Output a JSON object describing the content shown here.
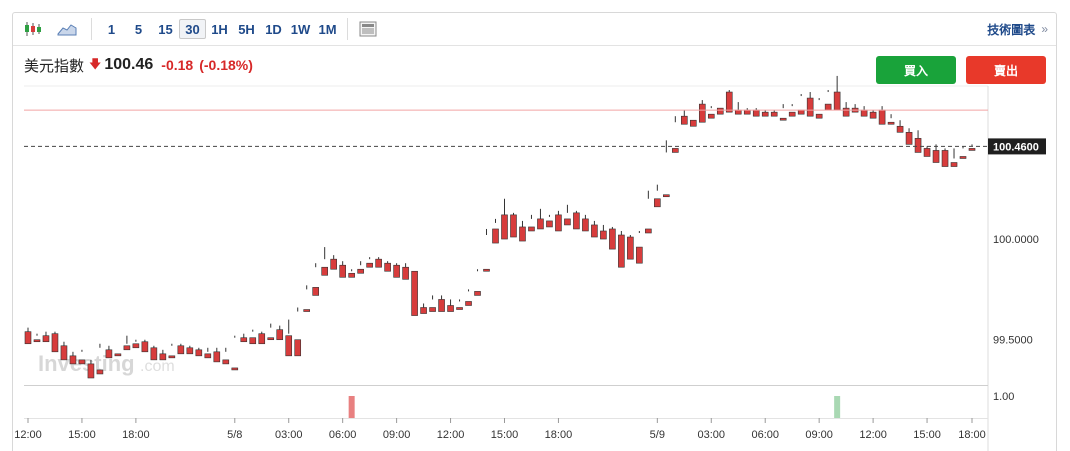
{
  "toolbar": {
    "timeframes": [
      "1",
      "5",
      "15",
      "30",
      "1H",
      "5H",
      "1D",
      "1W",
      "1M"
    ],
    "active_timeframe": "30",
    "tech_link": "技術圖表",
    "tech_arrow": "»"
  },
  "instrument": {
    "name": "美元指數",
    "price": "100.46",
    "change": "-0.18",
    "change_pct": "(-0.18%)",
    "direction": "down"
  },
  "actions": {
    "buy": "買入",
    "sell": "賣出"
  },
  "watermark": {
    "brand": "Investing",
    "suffix": ".com"
  },
  "colors": {
    "up": "#2ea043",
    "down": "#d73c3c",
    "buy": "#19a33a",
    "sell": "#e8392a",
    "accent": "#1f4a8a"
  },
  "chart_data": {
    "type": "candlestick",
    "current_price_label": "100.4600",
    "y_ticks": [
      "100.0000",
      "99.5000"
    ],
    "y_range": [
      99.3,
      100.75
    ],
    "current_price": 100.46,
    "reference_line": 100.64,
    "volume_tick": "1.00",
    "x_ticks": [
      "12:00",
      "15:00",
      "18:00",
      "5/8",
      "03:00",
      "06:00",
      "09:00",
      "12:00",
      "15:00",
      "18:00",
      "5/9",
      "03:00",
      "06:00",
      "09:00",
      "12:00",
      "15:00",
      "18:00"
    ],
    "candles": [
      [
        99.54,
        99.56,
        99.49,
        99.48
      ],
      [
        99.5,
        99.52,
        99.53,
        99.49
      ],
      [
        99.52,
        99.54,
        99.51,
        99.49
      ],
      [
        99.53,
        99.54,
        99.46,
        99.44
      ],
      [
        99.47,
        99.49,
        99.41,
        99.4
      ],
      [
        99.42,
        99.44,
        99.4,
        99.38
      ],
      [
        99.4,
        99.45,
        99.44,
        99.38
      ],
      [
        99.38,
        99.4,
        99.33,
        99.31
      ],
      [
        99.35,
        99.48,
        99.46,
        99.33
      ],
      [
        99.45,
        99.47,
        99.43,
        99.41
      ],
      [
        99.43,
        99.47,
        99.47,
        99.42
      ],
      [
        99.47,
        99.52,
        99.48,
        99.45
      ],
      [
        99.48,
        99.5,
        99.49,
        99.46
      ],
      [
        99.49,
        99.5,
        99.46,
        99.44
      ],
      [
        99.46,
        99.47,
        99.42,
        99.4
      ],
      [
        99.43,
        99.45,
        99.42,
        99.4
      ],
      [
        99.42,
        99.48,
        99.47,
        99.41
      ],
      [
        99.47,
        99.48,
        99.45,
        99.43
      ],
      [
        99.46,
        99.47,
        99.44,
        99.43
      ],
      [
        99.45,
        99.46,
        99.43,
        99.42
      ],
      [
        99.43,
        99.46,
        99.44,
        99.41
      ],
      [
        99.44,
        99.46,
        99.4,
        99.39
      ],
      [
        99.4,
        99.46,
        99.44,
        99.38
      ],
      [
        99.36,
        99.52,
        99.51,
        99.35
      ],
      [
        99.51,
        99.53,
        99.51,
        99.49
      ],
      [
        99.51,
        99.55,
        99.54,
        99.48
      ],
      [
        99.53,
        99.54,
        99.5,
        99.48
      ],
      [
        99.51,
        99.58,
        99.56,
        99.5
      ],
      [
        99.55,
        99.57,
        99.54,
        99.5
      ],
      [
        99.52,
        99.6,
        99.53,
        99.42
      ],
      [
        99.5,
        99.66,
        99.64,
        99.42
      ],
      [
        99.65,
        99.77,
        99.75,
        99.64
      ],
      [
        99.76,
        99.88,
        99.86,
        99.72
      ],
      [
        99.86,
        99.96,
        99.9,
        99.82
      ],
      [
        99.9,
        99.92,
        99.87,
        99.85
      ],
      [
        99.87,
        99.89,
        99.82,
        99.81
      ],
      [
        99.83,
        99.85,
        99.84,
        99.81
      ],
      [
        99.85,
        99.89,
        99.87,
        99.83
      ],
      [
        99.88,
        99.91,
        99.9,
        99.86
      ],
      [
        99.9,
        99.91,
        99.88,
        99.86
      ],
      [
        99.88,
        99.89,
        99.87,
        99.84
      ],
      [
        99.87,
        99.88,
        99.83,
        99.81
      ],
      [
        99.86,
        99.88,
        99.82,
        99.8
      ],
      [
        99.84,
        99.84,
        99.64,
        99.62
      ],
      [
        99.66,
        99.68,
        99.65,
        99.63
      ],
      [
        99.66,
        99.72,
        99.7,
        99.64
      ],
      [
        99.7,
        99.72,
        99.67,
        99.64
      ],
      [
        99.67,
        99.7,
        99.66,
        99.64
      ],
      [
        99.66,
        99.7,
        99.69,
        99.65
      ],
      [
        99.69,
        99.75,
        99.74,
        99.67
      ],
      [
        99.74,
        99.85,
        99.84,
        99.72
      ],
      [
        99.85,
        100.05,
        100.02,
        99.84
      ],
      [
        100.05,
        100.1,
        100.08,
        99.98
      ],
      [
        100.12,
        100.2,
        100.12,
        100.0
      ],
      [
        100.12,
        100.13,
        100.04,
        100.01
      ],
      [
        100.06,
        100.09,
        100.02,
        99.99
      ],
      [
        100.06,
        100.12,
        100.1,
        100.04
      ],
      [
        100.1,
        100.15,
        100.1,
        100.05
      ],
      [
        100.09,
        100.12,
        100.11,
        100.06
      ],
      [
        100.12,
        100.14,
        100.1,
        100.04
      ],
      [
        100.1,
        100.17,
        100.13,
        100.07
      ],
      [
        100.13,
        100.14,
        100.07,
        100.05
      ],
      [
        100.1,
        100.12,
        100.07,
        100.04
      ],
      [
        100.07,
        100.09,
        100.03,
        100.01
      ],
      [
        100.04,
        100.07,
        100.04,
        100.0
      ],
      [
        100.05,
        100.06,
        99.99,
        99.95
      ],
      [
        100.02,
        100.04,
        99.99,
        99.86
      ],
      [
        100.01,
        100.02,
        99.97,
        99.9
      ],
      [
        99.96,
        100.04,
        100.03,
        99.88
      ],
      [
        100.05,
        100.24,
        100.2,
        100.03
      ],
      [
        100.2,
        100.27,
        100.24,
        100.16
      ],
      [
        100.22,
        100.49,
        100.43,
        100.21
      ],
      [
        100.45,
        100.61,
        100.58,
        100.43
      ],
      [
        100.61,
        100.64,
        100.6,
        100.57
      ],
      [
        100.59,
        100.67,
        100.67,
        100.56
      ],
      [
        100.67,
        100.69,
        100.62,
        100.58
      ],
      [
        100.62,
        100.66,
        100.65,
        100.6
      ],
      [
        100.65,
        100.71,
        100.71,
        100.62
      ],
      [
        100.73,
        100.74,
        100.65,
        100.63
      ],
      [
        100.64,
        100.68,
        100.64,
        100.62
      ],
      [
        100.64,
        100.65,
        100.64,
        100.62
      ],
      [
        100.64,
        100.65,
        100.64,
        100.61
      ],
      [
        100.63,
        100.64,
        100.63,
        100.61
      ],
      [
        100.63,
        100.64,
        100.63,
        100.61
      ],
      [
        100.6,
        100.67,
        100.65,
        100.59
      ],
      [
        100.63,
        100.67,
        100.66,
        100.61
      ],
      [
        100.64,
        100.72,
        100.71,
        100.62
      ],
      [
        100.7,
        100.73,
        100.63,
        100.61
      ],
      [
        100.62,
        100.7,
        100.69,
        100.6
      ],
      [
        100.67,
        100.74,
        100.73,
        100.64
      ],
      [
        100.73,
        100.81,
        100.73,
        100.64
      ],
      [
        100.65,
        100.68,
        100.64,
        100.61
      ],
      [
        100.65,
        100.67,
        100.65,
        100.63
      ],
      [
        100.64,
        100.66,
        100.63,
        100.61
      ],
      [
        100.63,
        100.64,
        100.61,
        100.6
      ],
      [
        100.64,
        100.66,
        100.58,
        100.57
      ],
      [
        100.58,
        100.62,
        100.6,
        100.57
      ],
      [
        100.56,
        100.59,
        100.55,
        100.53
      ],
      [
        100.53,
        100.55,
        100.5,
        100.47
      ],
      [
        100.5,
        100.54,
        100.46,
        100.43
      ],
      [
        100.45,
        100.46,
        100.43,
        100.41
      ],
      [
        100.44,
        100.47,
        100.39,
        100.38
      ],
      [
        100.44,
        100.45,
        100.37,
        100.36
      ],
      [
        100.38,
        100.45,
        100.4,
        100.36
      ],
      [
        100.41,
        100.46,
        100.45,
        100.4
      ],
      [
        100.45,
        100.47,
        100.46,
        100.44
      ]
    ],
    "volume": [
      {
        "index": 36,
        "dir": "down"
      },
      {
        "index": 90,
        "dir": "up"
      }
    ]
  }
}
